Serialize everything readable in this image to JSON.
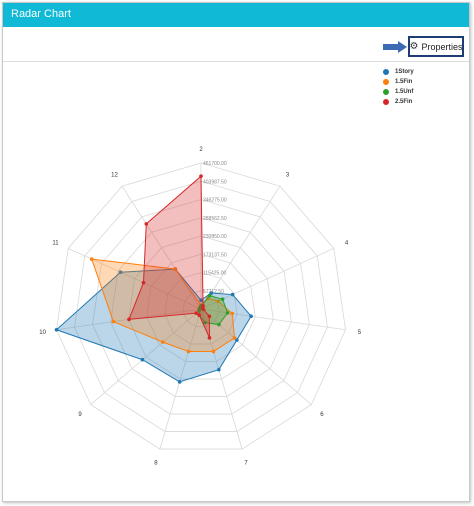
{
  "window": {
    "title": "Radar Chart"
  },
  "toolbar": {
    "properties_label": "Properties",
    "properties_icon": "gear-icon"
  },
  "colors": {
    "header": "#10b9d6",
    "button_border": "#1f3b73",
    "arrow": "#3d6bb3"
  },
  "chart_data": {
    "type": "radar",
    "categories": [
      "2",
      "3",
      "4",
      "5",
      "6",
      "7",
      "8",
      "9",
      "10",
      "11",
      "12"
    ],
    "radial_ticks": [
      "57712.50",
      "115425.00",
      "173137.50",
      "230850.00",
      "288562.50",
      "346275.00",
      "403987.50",
      "461700.00"
    ],
    "max": 461700,
    "series": [
      {
        "name": "1Story",
        "color": "#1f77b4",
        "values": [
          28000,
          60000,
          110000,
          160000,
          150000,
          200000,
          240000,
          245000,
          461700,
          280000,
          150000
        ]
      },
      {
        "name": "1.5Fin",
        "color": "#ff7f0e",
        "values": [
          12000,
          40000,
          60000,
          100000,
          140000,
          140000,
          140000,
          160000,
          280000,
          380000,
          150000
        ]
      },
      {
        "name": "1.5Unf",
        "color": "#2ca02c",
        "values": [
          10000,
          50000,
          75000,
          85000,
          75000,
          45000,
          20000,
          8000,
          5000,
          5000,
          5000
        ]
      },
      {
        "name": "2.5Fin",
        "color": "#d62728",
        "values": [
          420000,
          12000,
          6000,
          8000,
          35000,
          95000,
          20000,
          20000,
          230000,
          200000,
          320000
        ]
      }
    ],
    "legend_position": "top-right",
    "grid": true
  }
}
